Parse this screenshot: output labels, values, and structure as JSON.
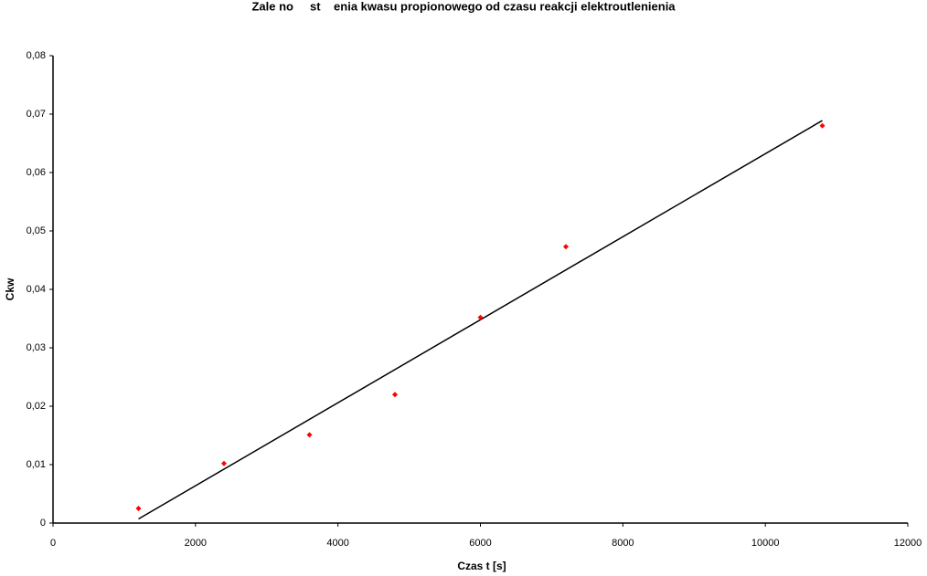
{
  "chart_data": {
    "type": "scatter",
    "title": "Zale no     st    enia kwasu propionowego od czasu reakcji elektroutlenienia",
    "x_label": "Czas t [s]",
    "y_label": "Ckw",
    "xlim": [
      0,
      12000
    ],
    "xticks": [
      0,
      2000,
      4000,
      6000,
      8000,
      10000,
      12000
    ],
    "ylim": [
      0,
      0.08
    ],
    "yticks": [
      0,
      {
        "value": 0.01,
        "label": "0,01"
      },
      {
        "value": 0.02,
        "label": "0,02"
      },
      {
        "value": 0.03,
        "label": "0,03"
      },
      {
        "value": 0.04,
        "label": "0,04"
      },
      {
        "value": 0.05,
        "label": "0,05"
      },
      {
        "value": 0.06,
        "label": "0,06"
      },
      {
        "value": 0.07,
        "label": "0,07"
      },
      {
        "value": 0.08,
        "label": "0,08"
      }
    ],
    "series": [
      {
        "color": "#ff0000",
        "x": [
          1200,
          2400,
          3600,
          4800,
          6000,
          7200,
          10800
        ],
        "values": [
          0.0025,
          0.0102,
          0.0151,
          0.022,
          0.0352,
          0.0473,
          0.068
        ]
      }
    ],
    "trendline": {
      "color": "#000000",
      "x": [
        1200,
        10800
      ],
      "values": [
        0.0007,
        0.0689
      ]
    }
  }
}
